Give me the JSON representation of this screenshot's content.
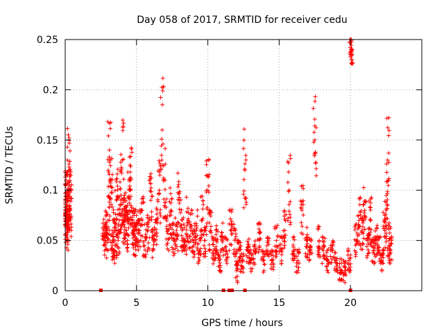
{
  "chart_data": {
    "type": "scatter",
    "title": "Day 058 of 2017, SRMTID for receiver cedu",
    "xlabel": "GPS time / hours",
    "ylabel": "SRMTID / TECUs",
    "xlim": [
      0,
      25
    ],
    "ylim": [
      0,
      0.25
    ],
    "xticks": [
      0,
      5,
      10,
      15,
      20
    ],
    "xtick_labels": [
      "0",
      "5",
      "10",
      "15",
      "20"
    ],
    "yticks": [
      0,
      0.05,
      0.1,
      0.15,
      0.2,
      0.25
    ],
    "ytick_labels": [
      "0",
      "0.05",
      "0.1",
      "0.15",
      "0.2",
      "0.25"
    ],
    "grid": true,
    "marker": "plus",
    "color": "#ff0000",
    "series": [
      {
        "name": "SRMTID",
        "description": "~1900 points; representative sample of the dense scatter",
        "x": [
          0.0,
          0.03,
          0.06,
          0.1,
          0.12,
          0.15,
          0.2,
          0.25,
          0.3,
          0.32,
          0.35,
          2.7,
          2.8,
          2.9,
          3.0,
          3.1,
          3.2,
          3.3,
          3.4,
          3.5,
          3.6,
          3.7,
          3.8,
          3.9,
          4.0,
          4.1,
          4.2,
          4.3,
          4.4,
          4.5,
          4.6,
          4.7,
          4.8,
          4.9,
          5.0,
          5.2,
          5.4,
          5.6,
          5.8,
          6.0,
          6.2,
          6.4,
          6.6,
          6.8,
          7.0,
          7.2,
          7.4,
          7.6,
          7.8,
          8.0,
          8.2,
          8.4,
          8.6,
          8.8,
          9.0,
          9.2,
          9.4,
          9.6,
          9.8,
          10.0,
          10.2,
          10.4,
          10.6,
          10.8,
          11.0,
          11.3,
          11.6,
          11.9,
          12.0,
          12.2,
          12.4,
          12.6,
          12.8,
          13.0,
          13.3,
          13.6,
          13.9,
          14.2,
          14.5,
          14.8,
          15.1,
          15.4,
          15.7,
          16.0,
          16.3,
          16.6,
          16.9,
          17.2,
          17.5,
          17.8,
          18.1,
          18.4,
          18.7,
          19.0,
          19.3,
          19.6,
          19.9,
          20.0,
          20.05,
          20.1,
          20.4,
          20.6,
          20.8,
          21.0,
          21.2,
          21.4,
          21.6,
          21.8,
          22.0,
          22.2,
          22.4,
          22.5,
          22.6,
          22.7,
          22.8
        ],
        "y": [
          0.09,
          0.08,
          0.07,
          0.09,
          0.06,
          0.08,
          0.07,
          0.12,
          0.09,
          0.1,
          0.08,
          0.06,
          0.05,
          0.06,
          0.07,
          0.14,
          0.11,
          0.06,
          0.04,
          0.06,
          0.09,
          0.05,
          0.07,
          0.09,
          0.13,
          0.07,
          0.08,
          0.06,
          0.07,
          0.1,
          0.11,
          0.07,
          0.06,
          0.05,
          0.06,
          0.06,
          0.07,
          0.05,
          0.06,
          0.09,
          0.05,
          0.07,
          0.1,
          0.16,
          0.11,
          0.06,
          0.08,
          0.05,
          0.06,
          0.09,
          0.06,
          0.05,
          0.07,
          0.06,
          0.05,
          0.06,
          0.04,
          0.07,
          0.05,
          0.1,
          0.06,
          0.04,
          0.05,
          0.03,
          0.05,
          0.04,
          0.06,
          0.05,
          0.02,
          0.04,
          0.03,
          0.12,
          0.04,
          0.03,
          0.04,
          0.05,
          0.03,
          0.04,
          0.03,
          0.05,
          0.04,
          0.06,
          0.1,
          0.04,
          0.03,
          0.08,
          0.05,
          0.04,
          0.15,
          0.05,
          0.04,
          0.03,
          0.04,
          0.03,
          0.02,
          0.02,
          0.03,
          0.25,
          0.24,
          0.24,
          0.05,
          0.07,
          0.06,
          0.08,
          0.05,
          0.07,
          0.04,
          0.05,
          0.04,
          0.03,
          0.06,
          0.08,
          0.13,
          0.05,
          0.04
        ]
      }
    ],
    "zero_markers_x": [
      2.5,
      11.1,
      11.5,
      11.7,
      12.6,
      20.0
    ]
  }
}
